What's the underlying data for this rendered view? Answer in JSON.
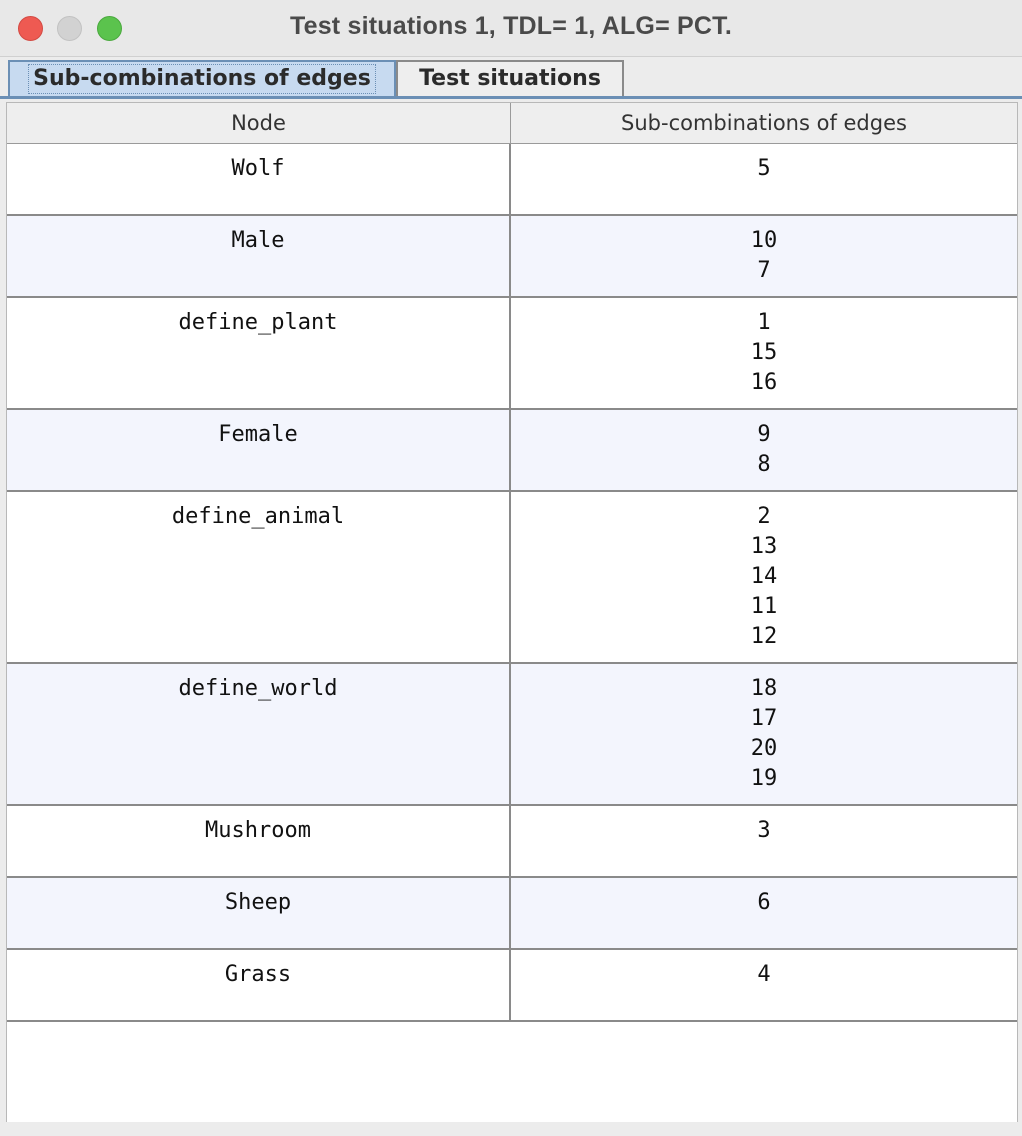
{
  "window": {
    "title": "Test situations 1, TDL= 1, ALG= PCT."
  },
  "tabs": [
    {
      "label": "Sub-combinations of edges",
      "active": true
    },
    {
      "label": "Test situations",
      "active": false
    }
  ],
  "table": {
    "columns": [
      "Node",
      "Sub-combinations of edges"
    ],
    "rows": [
      {
        "node": "Wolf",
        "edges": [
          "5"
        ]
      },
      {
        "node": "Male",
        "edges": [
          "10",
          "7"
        ]
      },
      {
        "node": "define_plant",
        "edges": [
          "1",
          "15",
          "16"
        ]
      },
      {
        "node": "Female",
        "edges": [
          "9",
          "8"
        ]
      },
      {
        "node": "define_animal",
        "edges": [
          "2",
          "13",
          "14",
          "11",
          "12"
        ]
      },
      {
        "node": "define_world",
        "edges": [
          "18",
          "17",
          "20",
          "19"
        ]
      },
      {
        "node": "Mushroom",
        "edges": [
          "3"
        ]
      },
      {
        "node": "Sheep",
        "edges": [
          "6"
        ]
      },
      {
        "node": "Grass",
        "edges": [
          "4"
        ]
      }
    ]
  },
  "colors": {
    "close": "#ee5a52",
    "minimize": "#d2d2d2",
    "zoom": "#5bc34d",
    "active_tab": "#c7daf0",
    "alt_row": "#f3f5fd"
  }
}
